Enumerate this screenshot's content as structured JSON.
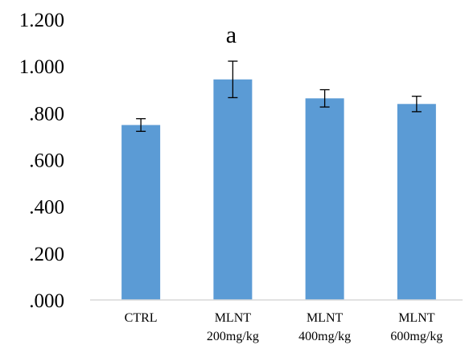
{
  "chart_data": {
    "type": "bar",
    "categories": [
      [
        "CTRL"
      ],
      [
        "MLNT",
        "200mg/kg"
      ],
      [
        "MLNT",
        "400mg/kg"
      ],
      [
        "MLNT",
        "600mg/kg"
      ]
    ],
    "values": [
      0.748,
      0.943,
      0.862,
      0.838
    ],
    "errors": [
      0.027,
      0.078,
      0.037,
      0.033
    ],
    "ylim": [
      0,
      1.2
    ],
    "yticks": [
      0,
      0.2,
      0.4,
      0.6,
      0.8,
      1.0,
      1.2
    ],
    "ytick_labels": [
      ".000",
      ".200",
      ".400",
      ".600",
      ".800",
      "1.000",
      "1.200"
    ],
    "annotations": [
      {
        "category_index": 1,
        "text": "a"
      }
    ],
    "title": "",
    "xlabel": "",
    "ylabel": "",
    "grid": false,
    "bar_color": "#5b9bd5"
  }
}
